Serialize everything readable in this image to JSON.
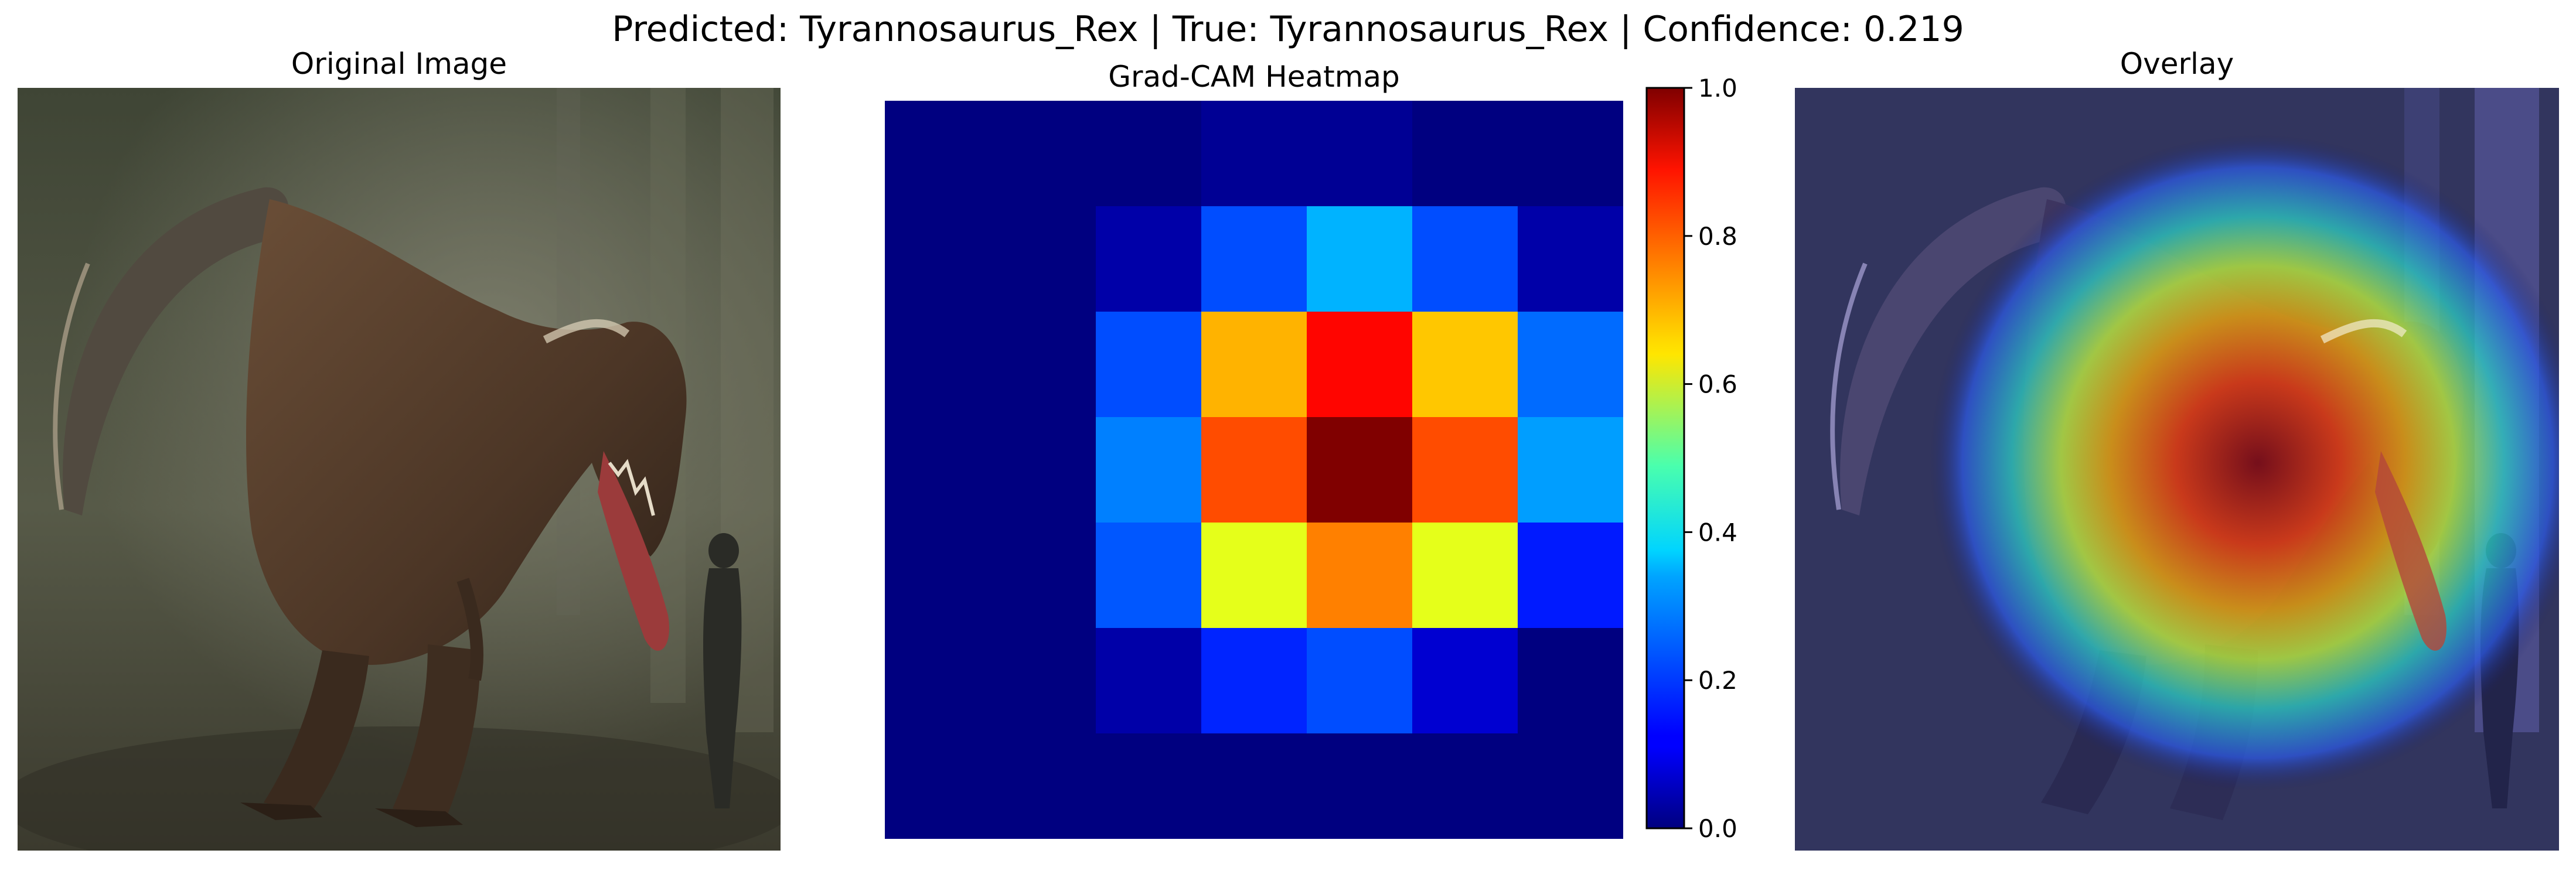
{
  "figure": {
    "suptitle": "Predicted: Tyrannosaurus_Rex | True: Tyrannosaurus_Rex | Confidence: 0.219"
  },
  "panels": {
    "original": {
      "title": "Original Image"
    },
    "heatmap": {
      "title": "Grad-CAM Heatmap"
    },
    "overlay": {
      "title": "Overlay"
    }
  },
  "chart_data": {
    "type": "heatmap",
    "title": "Grad-CAM Heatmap",
    "colormap": "jet",
    "rows": 7,
    "cols": 7,
    "values": [
      [
        0.0,
        0.0,
        0.0,
        0.02,
        0.02,
        0.0,
        0.0
      ],
      [
        0.0,
        0.0,
        0.04,
        0.2,
        0.3,
        0.2,
        0.04
      ],
      [
        0.0,
        0.0,
        0.2,
        0.7,
        0.87,
        0.68,
        0.23
      ],
      [
        0.0,
        0.0,
        0.25,
        0.8,
        1.0,
        0.8,
        0.28
      ],
      [
        0.0,
        0.0,
        0.21,
        0.6,
        0.75,
        0.6,
        0.15
      ],
      [
        0.0,
        0.0,
        0.04,
        0.16,
        0.2,
        0.08,
        0.0
      ],
      [
        0.0,
        0.0,
        0.0,
        0.0,
        0.0,
        0.0,
        0.0
      ]
    ],
    "colorbar": {
      "range": [
        0.0,
        1.0
      ],
      "ticks": [
        0.0,
        0.2,
        0.4,
        0.6,
        0.8,
        1.0
      ],
      "tick_labels": [
        "0.0",
        "0.2",
        "0.4",
        "0.6",
        "0.8",
        "1.0"
      ]
    }
  },
  "colors": {
    "background": "#ffffff",
    "scene_dark": "#2b2f22",
    "scene_mid": "#4f5341",
    "scene_light": "#7b7a66",
    "dino_brown": "#5b4330",
    "dino_dark": "#3a2a1e",
    "mouth_red": "#9b3b3b",
    "overlay_tint": "#1a1f66"
  }
}
